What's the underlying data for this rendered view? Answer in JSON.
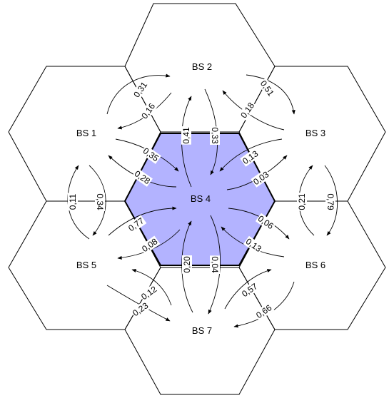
{
  "stations": [
    {
      "id": "bs1",
      "label": "BS 1"
    },
    {
      "id": "bs2",
      "label": "BS 2"
    },
    {
      "id": "bs3",
      "label": "BS 3"
    },
    {
      "id": "bs4",
      "label": "BS 4"
    },
    {
      "id": "bs5",
      "label": "BS 5"
    },
    {
      "id": "bs6",
      "label": "BS 6"
    },
    {
      "id": "bs7",
      "label": "BS 7"
    }
  ],
  "colors": {
    "center_fill": "#b3b3ff",
    "line": "#000000"
  },
  "transitions": [
    {
      "id": "bs1-bs2",
      "from": "BS 1",
      "to": "BS 2",
      "value": "0,31"
    },
    {
      "id": "bs2-bs1",
      "from": "BS 2",
      "to": "BS 1",
      "value": "0,16"
    },
    {
      "id": "bs2-bs3",
      "from": "BS 2",
      "to": "BS 3",
      "value": "0,51"
    },
    {
      "id": "bs3-bs2",
      "from": "BS 3",
      "to": "BS 2",
      "value": "0,18"
    },
    {
      "id": "bs1-bs4",
      "from": "BS 1",
      "to": "BS 4",
      "value": "0,35"
    },
    {
      "id": "bs4-bs1",
      "from": "BS 4",
      "to": "BS 1",
      "value": "0,28"
    },
    {
      "id": "bs4-bs2",
      "from": "BS 4",
      "to": "BS 2",
      "value": "0,41"
    },
    {
      "id": "bs2-bs4",
      "from": "BS 2",
      "to": "BS 4",
      "value": "0,33"
    },
    {
      "id": "bs3-bs4",
      "from": "BS 3",
      "to": "BS 4",
      "value": "0,13"
    },
    {
      "id": "bs4-bs3",
      "from": "BS 4",
      "to": "BS 3",
      "value": "0,03"
    },
    {
      "id": "bs5-bs1",
      "from": "BS 5",
      "to": "BS 1",
      "value": "0,11"
    },
    {
      "id": "bs1-bs5",
      "from": "BS 1",
      "to": "BS 5",
      "value": "0,34"
    },
    {
      "id": "bs3-bs6",
      "from": "BS 3",
      "to": "BS 6",
      "value": "0,79"
    },
    {
      "id": "bs6-bs3",
      "from": "BS 6",
      "to": "BS 3",
      "value": "0,21"
    },
    {
      "id": "bs5-bs4",
      "from": "BS 5",
      "to": "BS 4",
      "value": "0,77"
    },
    {
      "id": "bs4-bs5",
      "from": "BS 4",
      "to": "BS 5",
      "value": "0,08"
    },
    {
      "id": "bs4-bs6",
      "from": "BS 4",
      "to": "BS 6",
      "value": "0,06"
    },
    {
      "id": "bs6-bs4",
      "from": "BS 6",
      "to": "BS 4",
      "value": "0,13"
    },
    {
      "id": "bs4-bs7",
      "from": "BS 4",
      "to": "BS 7",
      "value": "0,04"
    },
    {
      "id": "bs7-bs4",
      "from": "BS 7",
      "to": "BS 4",
      "value": "0,20"
    },
    {
      "id": "bs5-bs7",
      "from": "BS 5",
      "to": "BS 7",
      "value": "0,12"
    },
    {
      "id": "bs7-bs5",
      "from": "BS 7",
      "to": "BS 5",
      "value": "0,23"
    },
    {
      "id": "bs6-bs7",
      "from": "BS 6",
      "to": "BS 7",
      "value": "0,66"
    },
    {
      "id": "bs7-bs6",
      "from": "BS 7",
      "to": "BS 6",
      "value": "0,57"
    }
  ]
}
